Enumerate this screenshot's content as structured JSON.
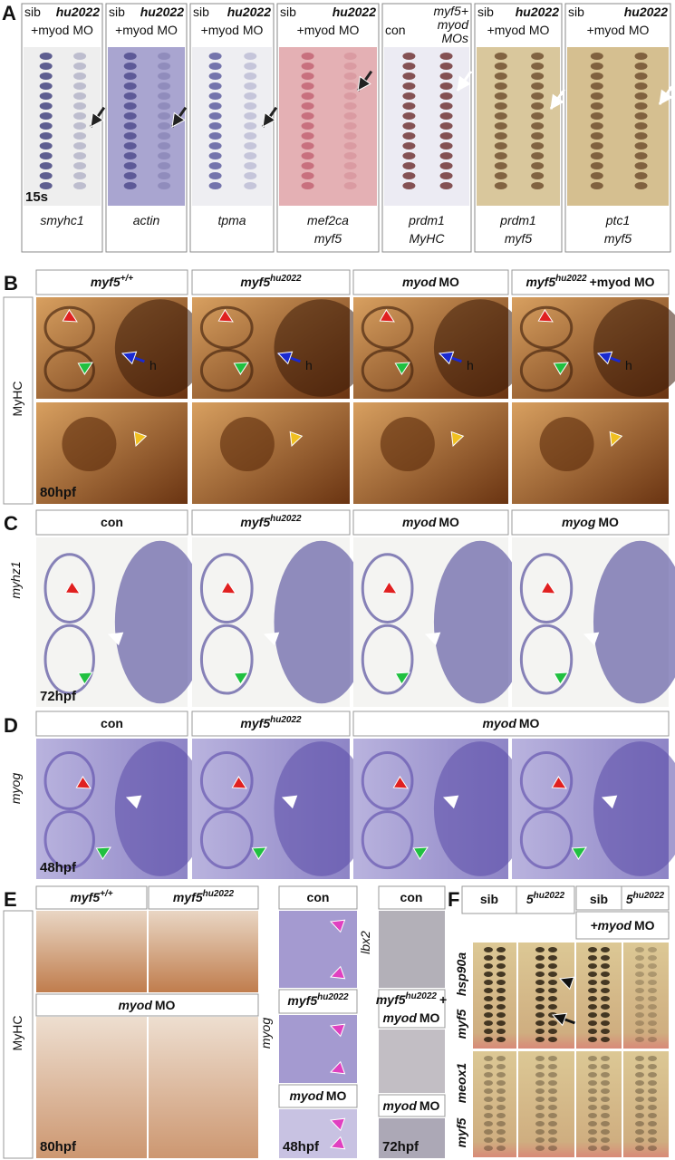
{
  "panel_a": {
    "label": "A",
    "stage": "15s",
    "columns": [
      {
        "header": [
          "sib",
          "hu2022",
          "+myod MO"
        ],
        "genes": [
          "smyhc1"
        ]
      },
      {
        "header": [
          "sib",
          "hu2022",
          "+myod MO"
        ],
        "genes": [
          "actin"
        ]
      },
      {
        "header": [
          "sib",
          "hu2022",
          "+myod MO"
        ],
        "genes": [
          "tpma"
        ]
      },
      {
        "header": [
          "sib",
          "hu2022",
          "+myod MO"
        ],
        "genes": [
          "mef2ca",
          "myf5"
        ]
      },
      {
        "header": [
          "con",
          "myf5+",
          "myod",
          "MOs"
        ],
        "genes": [
          "prdm1",
          "MyHC"
        ]
      },
      {
        "header": [
          "sib",
          "hu2022",
          "+myod MO"
        ],
        "genes": [
          "prdm1",
          "myf5"
        ]
      },
      {
        "header": [
          "sib",
          "hu2022",
          "+myod MO"
        ],
        "genes": [
          "ptc1",
          "myf5"
        ]
      }
    ]
  },
  "panel_b": {
    "label": "B",
    "side_label": "MyHC",
    "stage": "80hpf",
    "heart_labels": [
      "h",
      "h",
      "h",
      "h"
    ],
    "columns": [
      {
        "name": "myf5",
        "superscript": "+/+"
      },
      {
        "name": "myf5",
        "superscript": "hu2022"
      },
      {
        "name": "myod",
        "suffix": "MO"
      },
      {
        "name": "myf5",
        "superscript": "hu2022",
        "suffix": "+myod MO"
      }
    ]
  },
  "panel_c": {
    "label": "C",
    "side_label": "myhz1",
    "stage": "72hpf",
    "columns": [
      {
        "text": "con"
      },
      {
        "name": "myf5",
        "superscript": "hu2022"
      },
      {
        "name": "myod",
        "suffix": "MO"
      },
      {
        "name": "myog",
        "suffix": "MO"
      }
    ]
  },
  "panel_d": {
    "label": "D",
    "side_label": "myog",
    "stage": "48hpf",
    "columns": [
      {
        "text": "con"
      },
      {
        "name": "myf5",
        "superscript": "hu2022"
      },
      {
        "name": "myod",
        "suffix": "MO"
      }
    ]
  },
  "panel_e": {
    "label": "E",
    "side_label": "MyHC",
    "stage": "80hpf",
    "columns": [
      {
        "name": "myf5",
        "superscript": "+/+"
      },
      {
        "name": "myf5",
        "superscript": "hu2022"
      },
      {
        "name": "myod",
        "suffix": "MO"
      }
    ],
    "middle": {
      "side_label": "myog",
      "stage": "48hpf",
      "rows": [
        {
          "text": "con"
        },
        {
          "name": "myf5",
          "superscript": "hu2022"
        },
        {
          "name": "myod",
          "suffix": "MO"
        }
      ]
    },
    "right": {
      "side_label": "lbx2",
      "stage": "72hpf",
      "rows": [
        {
          "text": "con"
        },
        {
          "name": "myf5",
          "superscript": "hu2022",
          "suffix": "+"
        },
        {
          "name": "myod",
          "suffix": "MO"
        }
      ],
      "continuation": {
        "name": "myod",
        "suffix": "MO"
      }
    }
  },
  "panel_f": {
    "label": "F",
    "headers": [
      {
        "text": "sib"
      },
      {
        "name": "5",
        "superscript": "hu2022"
      },
      {
        "text": "sib"
      },
      {
        "name": "5",
        "superscript": "hu2022"
      }
    ],
    "treatment": {
      "name": "+myod",
      "suffix": "MO"
    },
    "side_labels": [
      [
        "hsp90a",
        "myf5"
      ],
      [
        "meox1",
        "myf5"
      ]
    ]
  }
}
